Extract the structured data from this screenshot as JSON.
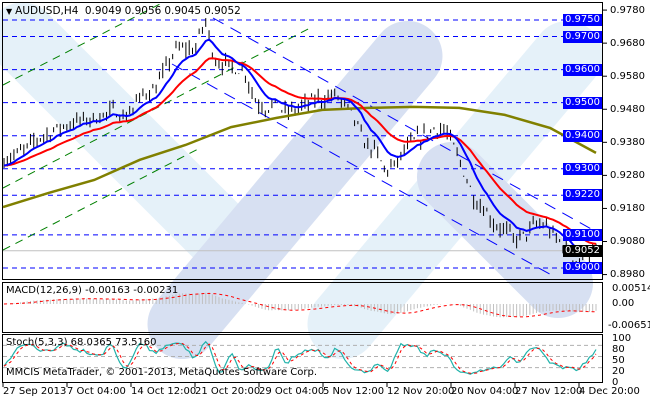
{
  "header": {
    "symbol": "AUDUSD,H4",
    "open": "0.9049",
    "high": "0.9056",
    "low": "0.9045",
    "close": "0.9052"
  },
  "chart_data": [
    {
      "type": "ohlc",
      "symbol": "AUDUSD",
      "timeframe": "H4",
      "closes": [
        0.9327,
        0.9342,
        0.9357,
        0.9387,
        0.9402,
        0.9417,
        0.9432,
        0.9441,
        0.9448,
        0.9454,
        0.9463,
        0.9478,
        0.9454,
        0.9493,
        0.9532,
        0.9538,
        0.9599,
        0.9659,
        0.9665,
        0.9659,
        0.975,
        0.9629,
        0.9614,
        0.9605,
        0.9593,
        0.9508,
        0.9484,
        0.9493,
        0.9472,
        0.9478,
        0.9493,
        0.9508,
        0.9514,
        0.9523,
        0.9493,
        0.9448,
        0.9372,
        0.9357,
        0.9296,
        0.9311,
        0.9357,
        0.9387,
        0.9402,
        0.9423,
        0.9417,
        0.9357,
        0.9281,
        0.9206,
        0.9175,
        0.913,
        0.9115,
        0.9085,
        0.91,
        0.913,
        0.913,
        0.9091,
        0.9069,
        0.9024,
        0.9018,
        0.9052
      ],
      "ma_long": [
        0.9184,
        0.9227,
        0.9266,
        0.9327,
        0.9372,
        0.9426,
        0.9454,
        0.9478,
        0.9484,
        0.9487,
        0.9484,
        0.9463,
        0.9423,
        0.9348
      ],
      "x_labels": [
        "27 Sep 2013",
        "7 Oct 04:00",
        "14 Oct 12:00",
        "21 Oct 20:00",
        "29 Oct 04:00",
        "5 Nov 12:00",
        "12 Nov 20:00",
        "20 Nov 04:00",
        "27 Nov 12:00",
        "4 Dec 20:00"
      ],
      "y_ticks": [
        "0.9780",
        "0.9680",
        "0.9580",
        "0.9480",
        "0.9380",
        "0.9280",
        "0.9180",
        "0.9080",
        "0.8980"
      ],
      "levels": [
        "0.9750",
        "0.9700",
        "0.9600",
        "0.9500",
        "0.9400",
        "0.9300",
        "0.9220",
        "0.9100",
        "0.9000"
      ],
      "current_price": "0.9052",
      "ylim": [
        0.8975,
        0.9783
      ],
      "colors": {
        "bars": "#000000",
        "ma_fast": "#0000ff",
        "ma_mid": "#ff0000",
        "ma_long": "#808000",
        "levels": "#0000ff",
        "fan": "#008000"
      }
    },
    {
      "type": "line",
      "title": "MACD(12,26,9) -0.00163 -0.00231",
      "y_ticks": [
        "0.00514",
        "0.00",
        "-0.00651"
      ],
      "colors": {
        "histogram": "#c0c0c0",
        "signal": "#ff0000"
      }
    },
    {
      "type": "line",
      "title": "Stoch(5,3,3) 68.0365 73.5160",
      "y_ticks": [
        "100",
        "80",
        "50",
        "20",
        "0"
      ],
      "colors": {
        "main": "#20b2aa",
        "signal": "#ff0000"
      }
    }
  ],
  "footer": {
    "copyright": "MMCIS MetaTrader, © 2001-2013, MetaQuotes Software Corp."
  }
}
